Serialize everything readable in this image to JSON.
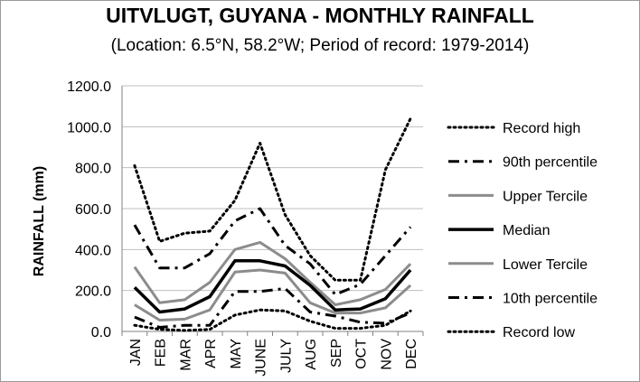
{
  "chart_data": {
    "type": "line",
    "title": "UITVLUGT, GUYANA - MONTHLY RAINFALL",
    "subtitle": "(Location: 6.5°N, 58.2°W; Period of record: 1979-2014)",
    "ylabel": "RAINFALL (mm)",
    "xlabel": "",
    "ylim": [
      0,
      1200
    ],
    "yticks": [
      "0.0",
      "200.0",
      "400.0",
      "600.0",
      "800.0",
      "1000.0",
      "1200.0"
    ],
    "categories": [
      "JAN",
      "FEB",
      "MAR",
      "APR",
      "MAY",
      "JUNE",
      "JULY",
      "AUG",
      "SEP",
      "OCT",
      "NOV",
      "DEC"
    ],
    "legend_position": "right",
    "grid": "horizontal",
    "series": [
      {
        "name": "Record high",
        "style": "dotted",
        "color": "#000000",
        "width": 3,
        "values": [
          810,
          440,
          480,
          490,
          640,
          920,
          570,
          370,
          250,
          250,
          790,
          1040
        ]
      },
      {
        "name": "90th percentile",
        "style": "dashdot",
        "color": "#000000",
        "width": 3,
        "values": [
          520,
          310,
          310,
          380,
          540,
          600,
          420,
          330,
          180,
          230,
          370,
          510
        ]
      },
      {
        "name": "Upper Tercile",
        "style": "solid",
        "color": "#8c8c8c",
        "width": 3,
        "values": [
          315,
          140,
          155,
          240,
          400,
          435,
          355,
          240,
          130,
          155,
          205,
          330
        ]
      },
      {
        "name": "Median",
        "style": "solid",
        "color": "#000000",
        "width": 3.5,
        "values": [
          215,
          95,
          110,
          170,
          345,
          345,
          320,
          225,
          105,
          110,
          160,
          300
        ]
      },
      {
        "name": "Lower Tercile",
        "style": "solid",
        "color": "#8c8c8c",
        "width": 3,
        "values": [
          130,
          55,
          60,
          105,
          290,
          300,
          285,
          140,
          90,
          90,
          115,
          225
        ]
      },
      {
        "name": "10th percentile",
        "style": "dashdot",
        "color": "#000000",
        "width": 3,
        "values": [
          70,
          20,
          30,
          30,
          195,
          195,
          210,
          95,
          75,
          45,
          40,
          90
        ]
      },
      {
        "name": "Record low",
        "style": "dotted",
        "color": "#000000",
        "width": 3,
        "values": [
          30,
          10,
          5,
          10,
          80,
          105,
          100,
          50,
          15,
          15,
          30,
          100
        ]
      }
    ]
  }
}
